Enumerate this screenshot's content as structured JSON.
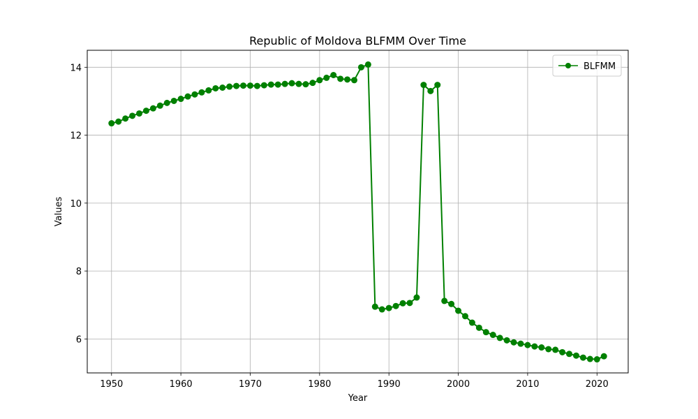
{
  "chart_data": {
    "type": "line",
    "title": "Republic of Moldova BLFMM Over Time",
    "xlabel": "Year",
    "ylabel": "Values",
    "xlim": [
      1946.5,
      2024.5
    ],
    "ylim": [
      5.0,
      14.5
    ],
    "xticks": [
      1950,
      1960,
      1970,
      1980,
      1990,
      2000,
      2010,
      2020
    ],
    "yticks": [
      6,
      8,
      10,
      12,
      14
    ],
    "grid": true,
    "legend_position": "top-right",
    "series": [
      {
        "name": "BLFMM",
        "color": "#008000",
        "marker": "circle",
        "x": [
          1950,
          1951,
          1952,
          1953,
          1954,
          1955,
          1956,
          1957,
          1958,
          1959,
          1960,
          1961,
          1962,
          1963,
          1964,
          1965,
          1966,
          1967,
          1968,
          1969,
          1970,
          1971,
          1972,
          1973,
          1974,
          1975,
          1976,
          1977,
          1978,
          1979,
          1980,
          1981,
          1982,
          1983,
          1984,
          1985,
          1986,
          1987,
          1988,
          1989,
          1990,
          1991,
          1992,
          1993,
          1994,
          1995,
          1996,
          1997,
          1998,
          1999,
          2000,
          2001,
          2002,
          2003,
          2004,
          2005,
          2006,
          2007,
          2008,
          2009,
          2010,
          2011,
          2012,
          2013,
          2014,
          2015,
          2016,
          2017,
          2018,
          2019,
          2020,
          2021
        ],
        "y": [
          12.35,
          12.4,
          12.49,
          12.57,
          12.64,
          12.72,
          12.79,
          12.87,
          12.95,
          13.01,
          13.07,
          13.14,
          13.2,
          13.26,
          13.32,
          13.38,
          13.4,
          13.43,
          13.45,
          13.46,
          13.46,
          13.45,
          13.47,
          13.49,
          13.49,
          13.51,
          13.53,
          13.51,
          13.5,
          13.54,
          13.62,
          13.69,
          13.77,
          13.66,
          13.64,
          13.62,
          14.0,
          14.08,
          6.95,
          6.87,
          6.91,
          6.97,
          7.05,
          7.06,
          7.22,
          13.48,
          13.3,
          13.48,
          7.12,
          7.03,
          6.83,
          6.67,
          6.48,
          6.33,
          6.2,
          6.12,
          6.03,
          5.96,
          5.9,
          5.86,
          5.82,
          5.78,
          5.75,
          5.7,
          5.68,
          5.61,
          5.56,
          5.51,
          5.45,
          5.41,
          5.4,
          5.49
        ]
      }
    ]
  }
}
